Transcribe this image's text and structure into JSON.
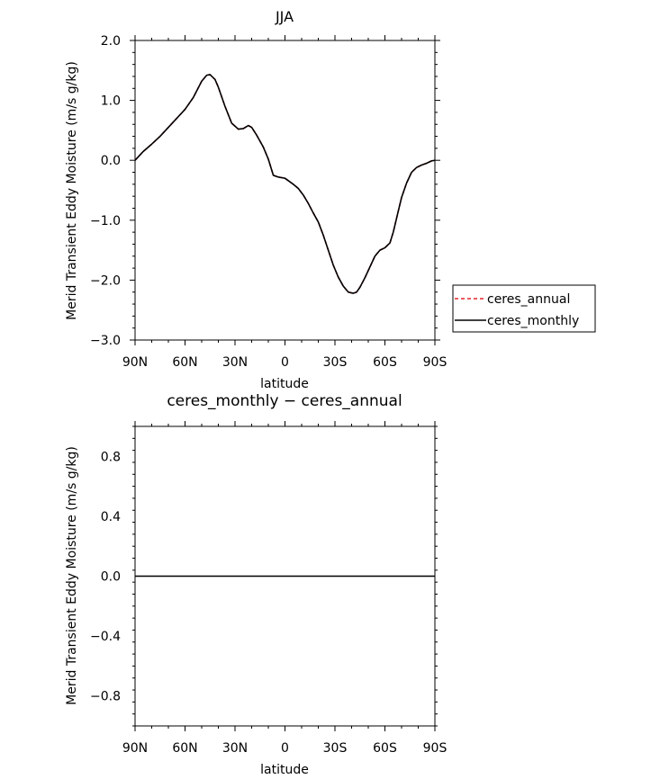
{
  "chart_data": [
    {
      "type": "line",
      "title": "JJA",
      "xlabel": "latitude",
      "ylabel": "Merid Transient Eddy Moisture (m/s g/kg)",
      "xlim": [
        90,
        -90
      ],
      "ylim": [
        -3.0,
        2.0
      ],
      "xticks": [
        90,
        60,
        30,
        0,
        -30,
        -60,
        -90
      ],
      "xtick_labels": [
        "90N",
        "60N",
        "30N",
        "0",
        "30S",
        "60S",
        "90S"
      ],
      "yticks": [
        -3.0,
        -2.0,
        -1.0,
        0.0,
        1.0,
        2.0
      ],
      "ytick_labels": [
        "−3.0",
        "−2.0",
        "−1.0",
        "0.0",
        "1.0",
        "2.0"
      ],
      "legend": {
        "position": "right",
        "entries": [
          {
            "label": "ceres_annual",
            "color": "#e8232a",
            "dash": "dashed"
          },
          {
            "label": "ceres_monthly",
            "color": "#000000",
            "dash": "solid"
          }
        ]
      },
      "x": [
        90,
        85,
        80,
        75,
        70,
        65,
        60,
        55,
        50,
        47,
        45,
        42,
        40,
        36,
        32,
        30,
        28,
        25,
        22,
        20,
        17,
        15,
        13,
        10,
        7,
        4,
        2,
        0,
        -3,
        -5,
        -8,
        -11,
        -14,
        -17,
        -20,
        -23,
        -26,
        -29,
        -32,
        -35,
        -38,
        -41,
        -43,
        -45,
        -48,
        -51,
        -54,
        -57,
        -60,
        -63,
        -65,
        -68,
        -70,
        -73,
        -76,
        -79,
        -82,
        -85,
        -88,
        -90
      ],
      "series": [
        {
          "name": "ceres_annual",
          "color": "#e8232a",
          "values": [
            0.0,
            0.15,
            0.27,
            0.4,
            0.55,
            0.7,
            0.85,
            1.05,
            1.32,
            1.42,
            1.43,
            1.35,
            1.22,
            0.9,
            0.62,
            0.57,
            0.52,
            0.53,
            0.58,
            0.55,
            0.42,
            0.32,
            0.22,
            0.02,
            -0.25,
            -0.28,
            -0.29,
            -0.3,
            -0.36,
            -0.4,
            -0.47,
            -0.58,
            -0.72,
            -0.88,
            -1.03,
            -1.25,
            -1.5,
            -1.75,
            -1.95,
            -2.1,
            -2.2,
            -2.22,
            -2.2,
            -2.12,
            -1.96,
            -1.78,
            -1.6,
            -1.5,
            -1.46,
            -1.38,
            -1.2,
            -0.85,
            -0.62,
            -0.38,
            -0.2,
            -0.12,
            -0.08,
            -0.05,
            -0.01,
            0.0
          ]
        },
        {
          "name": "ceres_monthly",
          "color": "#000000",
          "values": [
            0.0,
            0.15,
            0.27,
            0.4,
            0.55,
            0.7,
            0.85,
            1.05,
            1.32,
            1.42,
            1.43,
            1.35,
            1.22,
            0.9,
            0.62,
            0.57,
            0.52,
            0.53,
            0.58,
            0.55,
            0.42,
            0.32,
            0.22,
            0.02,
            -0.25,
            -0.28,
            -0.29,
            -0.3,
            -0.36,
            -0.4,
            -0.47,
            -0.58,
            -0.72,
            -0.88,
            -1.03,
            -1.25,
            -1.5,
            -1.75,
            -1.95,
            -2.1,
            -2.2,
            -2.22,
            -2.2,
            -2.12,
            -1.96,
            -1.78,
            -1.6,
            -1.5,
            -1.46,
            -1.38,
            -1.2,
            -0.85,
            -0.62,
            -0.38,
            -0.2,
            -0.12,
            -0.08,
            -0.05,
            -0.01,
            0.0
          ]
        }
      ]
    },
    {
      "type": "line",
      "title": "ceres_monthly − ceres_annual",
      "xlabel": "latitude",
      "ylabel": "Merid Transient Eddy Moisture (m/s g/kg)",
      "xlim": [
        90,
        -90
      ],
      "ylim": [
        -1.0,
        1.0
      ],
      "xticks": [
        90,
        60,
        30,
        0,
        -30,
        -60,
        -90
      ],
      "xtick_labels": [
        "90N",
        "60N",
        "30N",
        "0",
        "30S",
        "60S",
        "90S"
      ],
      "yticks": [
        -0.8,
        -0.4,
        0.0,
        0.4,
        0.8
      ],
      "ytick_labels": [
        "−0.8",
        "−0.4",
        "0.0",
        "0.4",
        "0.8"
      ],
      "x": [
        90,
        -90
      ],
      "series": [
        {
          "color": "#000000",
          "values": [
            0.0,
            0.0
          ]
        }
      ]
    }
  ]
}
